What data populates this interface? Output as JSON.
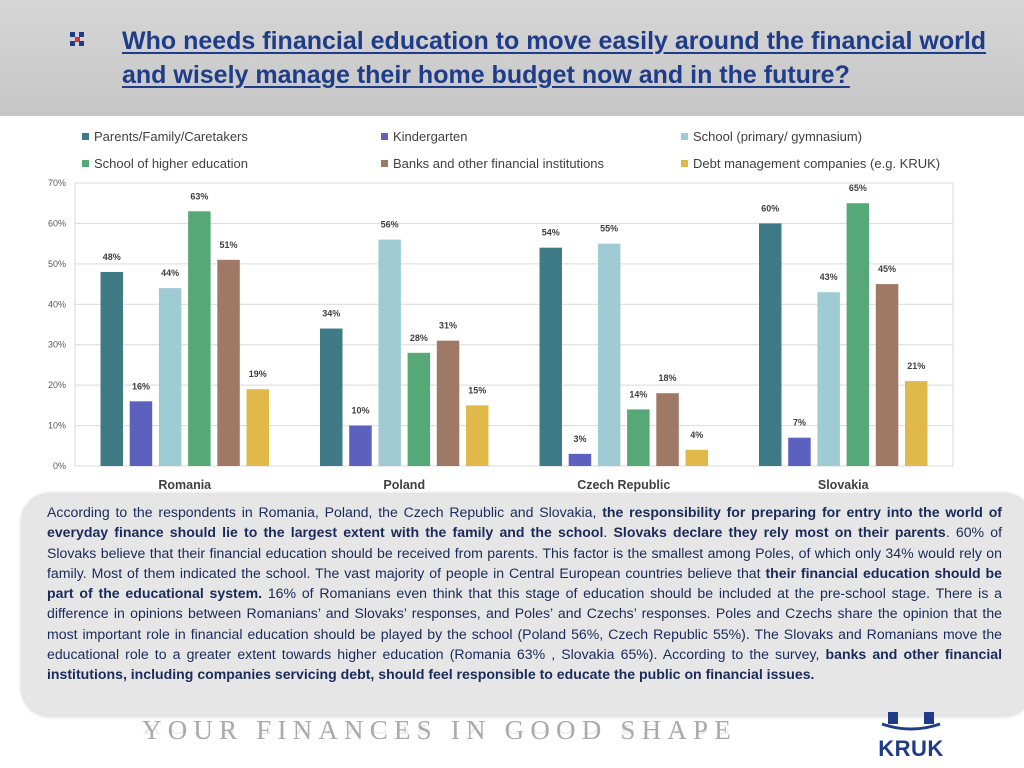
{
  "title": {
    "line1": "Who needs financial education to move easily around the financial world",
    "line2": "and wisely manage their home budget now and in the future?"
  },
  "colors": {
    "title": "#1f3c88",
    "body_text": "#1a2a5a",
    "bullet": [
      "#1f3c88",
      "#e0302f"
    ]
  },
  "chart_data": {
    "type": "bar",
    "categories": [
      "Romania",
      "Poland",
      "Czech Republic",
      "Slovakia"
    ],
    "series": [
      {
        "name": "Parents/Family/Caretakers",
        "color": "#3f7b86",
        "values": [
          48,
          34,
          54,
          60
        ],
        "labels": [
          "48%",
          "34%",
          "54%",
          "60%"
        ]
      },
      {
        "name": "Kindergarten",
        "color": "#5b61bc",
        "values": [
          16,
          10,
          3,
          7
        ],
        "labels": [
          "16%",
          "10%",
          "3%",
          "7%"
        ]
      },
      {
        "name": "School (primary/ gymnasium)",
        "color": "#9fcbd5",
        "values": [
          44,
          56,
          55,
          43
        ],
        "labels": [
          "44%",
          "56%",
          "55%",
          "43%"
        ]
      },
      {
        "name": "School of higher education",
        "color": "#57a877",
        "values": [
          63,
          28,
          14,
          65
        ],
        "labels": [
          "63%",
          "28%",
          "14%",
          "65%"
        ]
      },
      {
        "name": "Banks and other financial institutions",
        "color": "#a07966",
        "values": [
          51,
          31,
          18,
          45
        ],
        "labels": [
          "51%",
          "31%",
          "18%",
          "45%"
        ]
      },
      {
        "name": "Debt management companies (e.g. KRUK)",
        "color": "#e0b94a",
        "values": [
          19,
          15,
          4,
          21
        ],
        "labels": [
          "19%",
          "15%",
          "4%",
          "21%"
        ]
      }
    ],
    "y_ticks": [
      "0%",
      "10%",
      "20%",
      "30%",
      "40%",
      "50%",
      "60%",
      "70%"
    ],
    "ylim": [
      0,
      70
    ],
    "grid": true,
    "legend_position": "top"
  },
  "body": {
    "p1": "According to the respondents in Romania, Poland, the Czech Republic and Slovakia, ",
    "b1": "the responsibility for preparing for entry into the world of everyday finance should lie to the largest extent with the family and the school",
    "p2": ". ",
    "b2": "Slovaks declare they rely most on their parents",
    "p3": ". 60% of Slovaks believe that their financial education should be received from parents. This factor is the smallest among Poles, of which only 34% would rely on family. Most of them indicated the school. The vast majority of people in Central European countries believe that ",
    "b3": "their financial education should be part of the educational system.",
    "p4": " 16% of Romanians even think that this stage of education should be included at the pre-school stage. There is a difference in opinions between Romanians’ and Slovaks’ responses, and Poles’ and Czechs’ responses. Poles and Czechs share the opinion that the most important role in financial education should be played by the school (Poland 56%, Czech Republic 55%). The Slovaks and Romanians move the educational role to a greater extent towards higher education (Romania 63% , Slovakia 65%). According to the survey, ",
    "b4": "banks and other financial institutions, including companies servicing debt, should feel responsible  to educate the public on financial issues."
  },
  "footer": {
    "tagline": "YOUR FINANCES IN GOOD SHAPE",
    "logo_text": "KRUK"
  }
}
